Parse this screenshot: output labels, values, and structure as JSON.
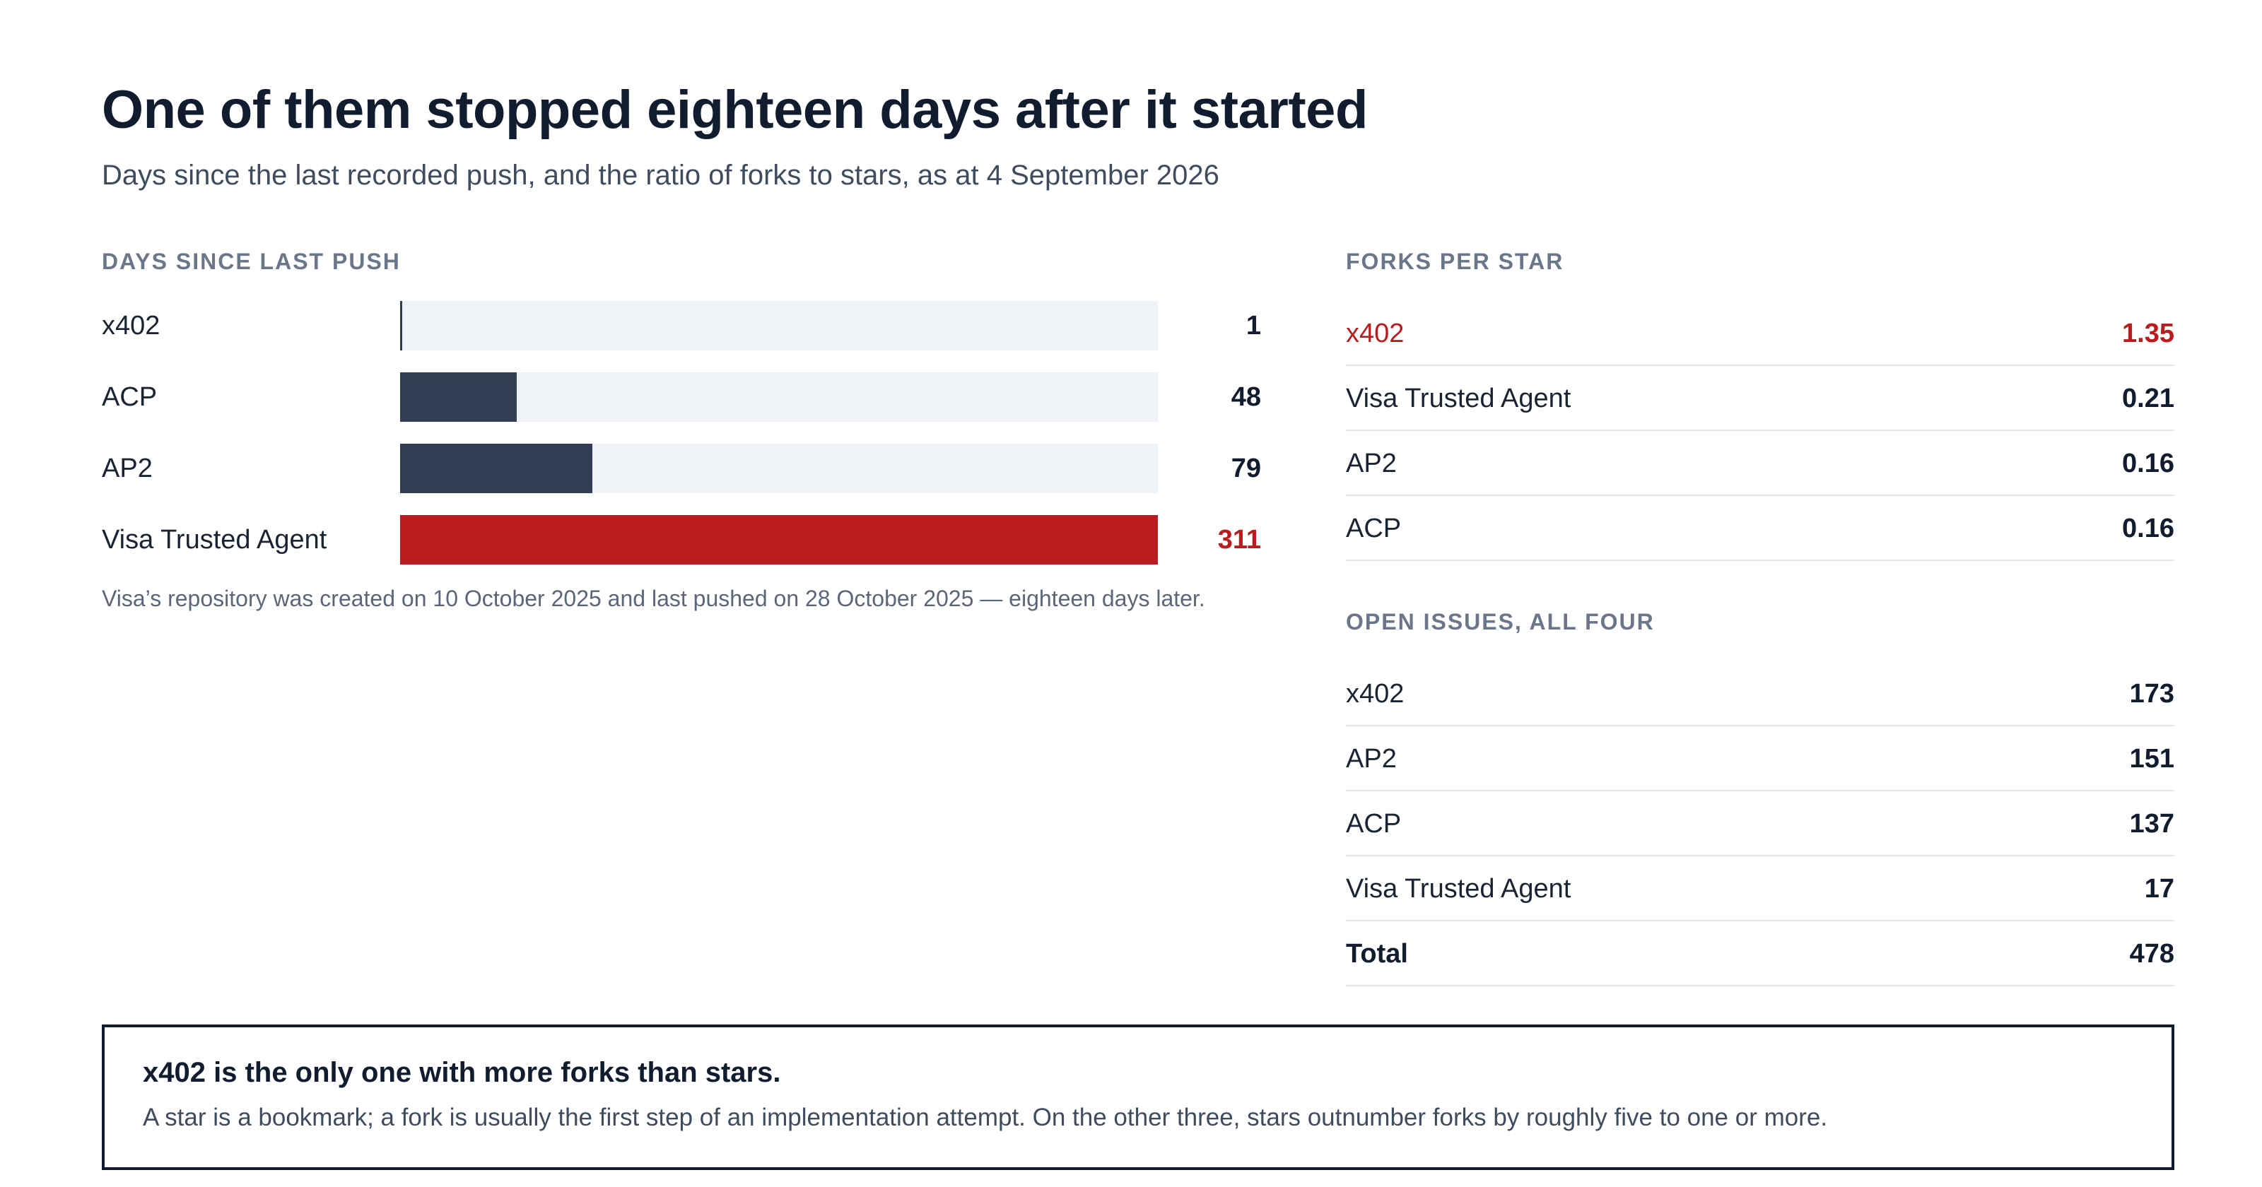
{
  "header": {
    "title": "One of them stopped eighteen days after it started",
    "subtitle": "Days since the last recorded push, and the ratio of forks to stars, as at 4 September 2026"
  },
  "chart_data": [
    {
      "type": "bar",
      "orientation": "horizontal",
      "title": "DAYS SINCE LAST PUSH",
      "categories": [
        "x402",
        "ACP",
        "AP2",
        "Visa Trusted Agent"
      ],
      "values": [
        1,
        48,
        79,
        311
      ],
      "value_labels": [
        "1",
        "48",
        "79",
        "311"
      ],
      "xlim": [
        0,
        311
      ],
      "highlight": "Visa Trusted Agent",
      "colors": {
        "bar": "#323f52",
        "highlight": "#b91c1f",
        "track": "#eff3f8"
      },
      "grid": false,
      "note": "Visa’s repository was created on 10 October 2025 and last pushed on 28 October 2025 — eighteen days later."
    },
    {
      "type": "table",
      "title": "FORKS PER STAR",
      "rows": [
        {
          "name": "x402",
          "value": "1.35",
          "highlight": true
        },
        {
          "name": "Visa Trusted Agent",
          "value": "0.21"
        },
        {
          "name": "AP2",
          "value": "0.16"
        },
        {
          "name": "ACP",
          "value": "0.16"
        }
      ]
    },
    {
      "type": "table",
      "title": "OPEN ISSUES, ALL FOUR",
      "rows": [
        {
          "name": "x402",
          "value": "173"
        },
        {
          "name": "AP2",
          "value": "151"
        },
        {
          "name": "ACP",
          "value": "137"
        },
        {
          "name": "Visa Trusted Agent",
          "value": "17"
        },
        {
          "name": "Total",
          "value": "478",
          "total": true
        }
      ]
    }
  ],
  "callout": {
    "title": "x402 is the only one with more forks than stars.",
    "body": "A star is a bookmark; a fork is usually the first step of an implementation attempt. On the other three, stars outnumber forks by roughly five to one or more."
  }
}
